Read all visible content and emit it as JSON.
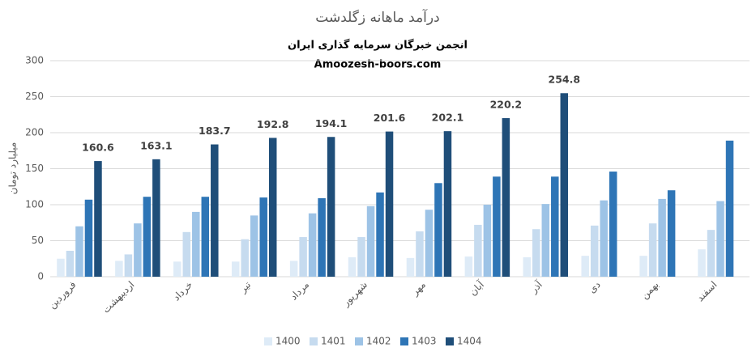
{
  "chart_data": {
    "type": "bar",
    "title": "درآمد ماهانه زگلدشت",
    "subtitle": [
      "انجمن خبرگان سرمایه گذاری ایران",
      "Amoozesh-boors.com"
    ],
    "y_label": "میلیارد تومان",
    "categories": [
      "فروردین",
      "اردیبهشت",
      "خرداد",
      "تیر",
      "مرداد",
      "شهریور",
      "مهر",
      "آبان",
      "آذر",
      "دی",
      "بهمن",
      "اسفند"
    ],
    "series": [
      {
        "name": "1400",
        "color": "#deebf7",
        "values": [
          25,
          22,
          21,
          21,
          22,
          27,
          26,
          28,
          27,
          29,
          29,
          38
        ]
      },
      {
        "name": "1401",
        "color": "#c6dbef",
        "values": [
          36,
          31,
          62,
          52,
          55,
          55,
          63,
          72,
          66,
          71,
          74,
          65
        ]
      },
      {
        "name": "1402",
        "color": "#9dc3e6",
        "values": [
          70,
          74,
          90,
          85,
          88,
          98,
          93,
          100,
          101,
          106,
          108,
          105
        ]
      },
      {
        "name": "1403",
        "color": "#2e75b6",
        "values": [
          107,
          111,
          111,
          110,
          109,
          117,
          130,
          139,
          139,
          146,
          120,
          189
        ]
      },
      {
        "name": "1404",
        "color": "#1f4e79",
        "values": [
          160.6,
          163.1,
          183.7,
          192.8,
          194.1,
          201.6,
          202.1,
          220.2,
          254.8,
          null,
          null,
          null
        ],
        "data_labels": true
      }
    ],
    "ylim": [
      0,
      300
    ],
    "yticks": [
      0,
      50,
      100,
      150,
      200,
      250,
      300
    ],
    "grid": true,
    "legend": "bottom"
  }
}
